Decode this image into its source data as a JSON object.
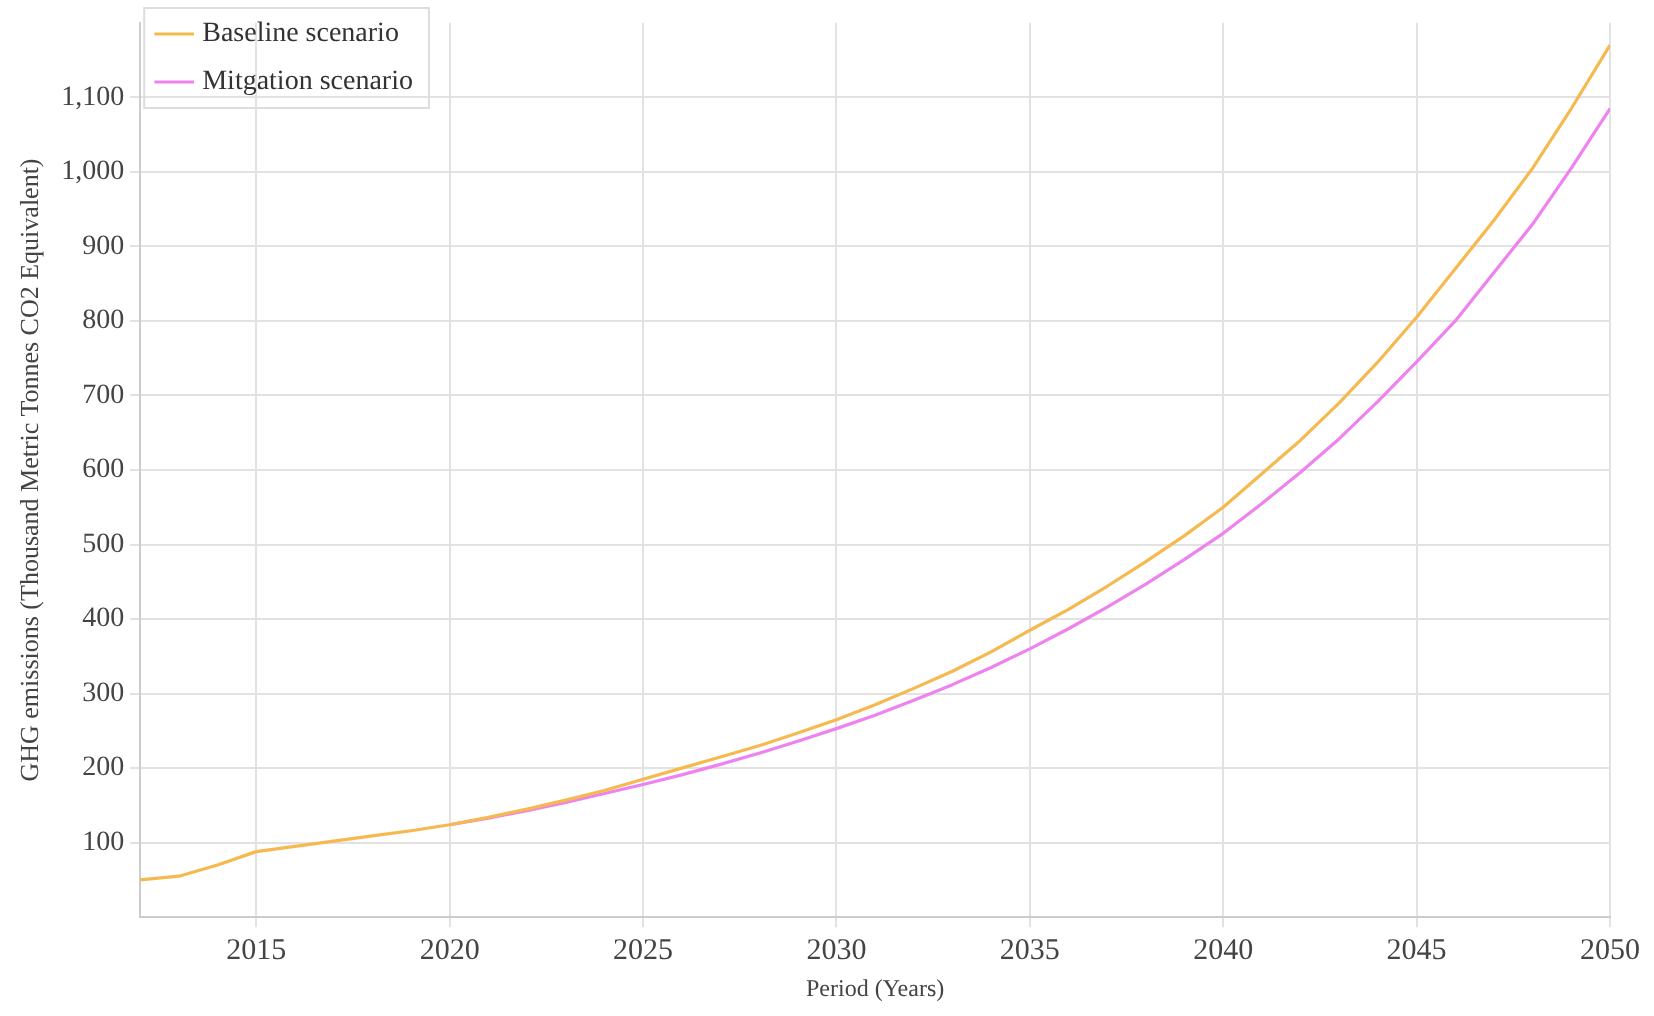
{
  "chart_data": {
    "type": "line",
    "xlabel": "Period (Years)",
    "ylabel": "GHG emissions (Thousand Metric Tonnes CO2 Equivalent)",
    "x": [
      2012,
      2013,
      2014,
      2015,
      2016,
      2017,
      2018,
      2019,
      2020,
      2021,
      2022,
      2023,
      2024,
      2025,
      2026,
      2027,
      2028,
      2029,
      2030,
      2031,
      2032,
      2033,
      2034,
      2035,
      2036,
      2037,
      2038,
      2039,
      2040,
      2041,
      2042,
      2043,
      2044,
      2045,
      2046,
      2047,
      2048,
      2049,
      2050
    ],
    "series": [
      {
        "name": "Baseline scenario",
        "color": "#f5b94f",
        "values": [
          50,
          55,
          70,
          88,
          95,
          102,
          109,
          116,
          124,
          134,
          145,
          157,
          170,
          185,
          200,
          215,
          230,
          247,
          265,
          285,
          307,
          330,
          356,
          385,
          413,
          444,
          477,
          512,
          550,
          595,
          640,
          690,
          745,
          805,
          870,
          935,
          1005,
          1085,
          1170
        ]
      },
      {
        "name": "Mitgation scenario",
        "color": "#ee82ee",
        "values": [
          null,
          null,
          null,
          null,
          null,
          null,
          null,
          null,
          124,
          133,
          143,
          154,
          166,
          178,
          191,
          205,
          220,
          236,
          253,
          271,
          291,
          312,
          335,
          360,
          387,
          416,
          447,
          480,
          515,
          555,
          597,
          642,
          692,
          745,
          800,
          865,
          930,
          1005,
          1085
        ]
      }
    ],
    "xlim": [
      2012,
      2050
    ],
    "xticks": [
      2015,
      2020,
      2025,
      2030,
      2035,
      2040,
      2045,
      2050
    ],
    "ylim": [
      0,
      1200
    ],
    "yticks": [
      100,
      200,
      300,
      400,
      500,
      600,
      700,
      800,
      900,
      {
        "value": 1000,
        "label": "1,000"
      },
      {
        "value": 1100,
        "label": "1,100"
      }
    ],
    "grid": true,
    "legend": "top left",
    "marker": "none",
    "line_style": "solid"
  }
}
